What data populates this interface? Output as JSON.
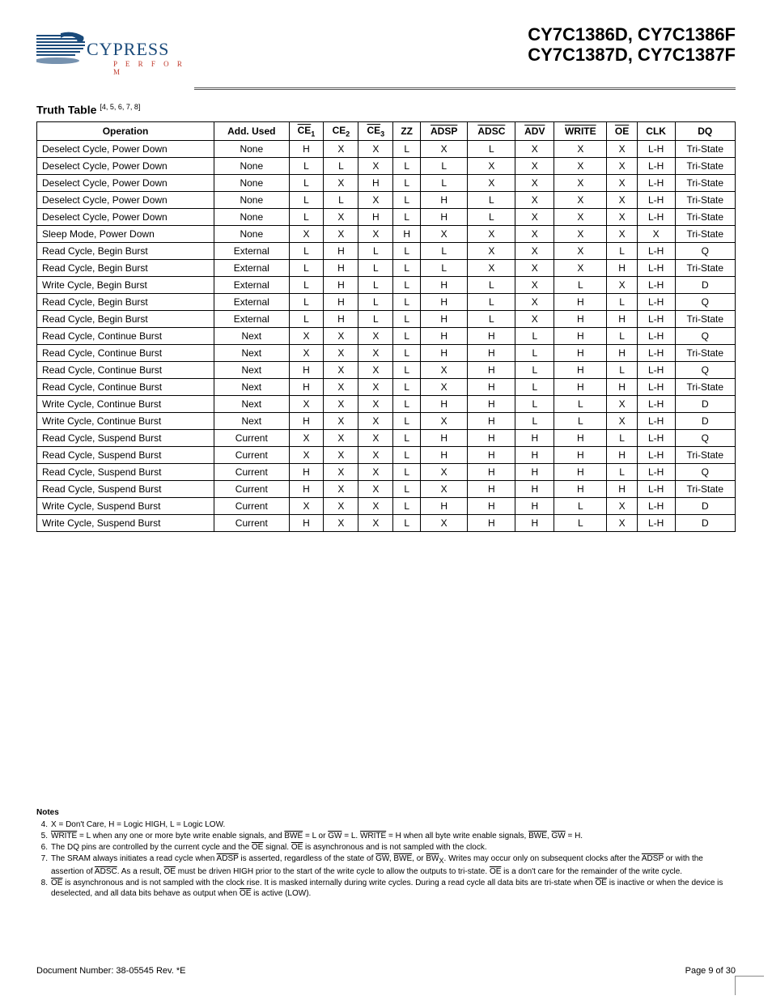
{
  "header": {
    "logo_name": "CYPRESS",
    "logo_tag": "P E R F O R M",
    "parts_line1": "CY7C1386D, CY7C1386F",
    "parts_line2": "CY7C1387D, CY7C1387F"
  },
  "section": {
    "title": "Truth Table",
    "refs": "[4, 5, 6, 7, 8]"
  },
  "table": {
    "columns": [
      {
        "label": "Operation",
        "overline": false
      },
      {
        "label": "Add. Used",
        "overline": false
      },
      {
        "label": "CE",
        "sub": "1",
        "overline": true
      },
      {
        "label": "CE",
        "sub": "2",
        "overline": false
      },
      {
        "label": "CE",
        "sub": "3",
        "overline": true
      },
      {
        "label": "ZZ",
        "overline": false
      },
      {
        "label": "ADSP",
        "overline": true
      },
      {
        "label": "ADSC",
        "overline": true
      },
      {
        "label": "ADV",
        "overline": true
      },
      {
        "label": "WRITE",
        "overline": true
      },
      {
        "label": "OE",
        "overline": true
      },
      {
        "label": "CLK",
        "overline": false
      },
      {
        "label": "DQ",
        "overline": false
      }
    ],
    "rows": [
      [
        "Deselect Cycle, Power Down",
        "None",
        "H",
        "X",
        "X",
        "L",
        "X",
        "L",
        "X",
        "X",
        "X",
        "L-H",
        "Tri-State"
      ],
      [
        "Deselect Cycle, Power Down",
        "None",
        "L",
        "L",
        "X",
        "L",
        "L",
        "X",
        "X",
        "X",
        "X",
        "L-H",
        "Tri-State"
      ],
      [
        "Deselect Cycle, Power Down",
        "None",
        "L",
        "X",
        "H",
        "L",
        "L",
        "X",
        "X",
        "X",
        "X",
        "L-H",
        "Tri-State"
      ],
      [
        "Deselect Cycle, Power Down",
        "None",
        "L",
        "L",
        "X",
        "L",
        "H",
        "L",
        "X",
        "X",
        "X",
        "L-H",
        "Tri-State"
      ],
      [
        "Deselect Cycle, Power Down",
        "None",
        "L",
        "X",
        "H",
        "L",
        "H",
        "L",
        "X",
        "X",
        "X",
        "L-H",
        "Tri-State"
      ],
      [
        "Sleep Mode, Power Down",
        "None",
        "X",
        "X",
        "X",
        "H",
        "X",
        "X",
        "X",
        "X",
        "X",
        "X",
        "Tri-State"
      ],
      [
        "Read Cycle, Begin Burst",
        "External",
        "L",
        "H",
        "L",
        "L",
        "L",
        "X",
        "X",
        "X",
        "L",
        "L-H",
        "Q"
      ],
      [
        "Read Cycle, Begin Burst",
        "External",
        "L",
        "H",
        "L",
        "L",
        "L",
        "X",
        "X",
        "X",
        "H",
        "L-H",
        "Tri-State"
      ],
      [
        "Write Cycle, Begin Burst",
        "External",
        "L",
        "H",
        "L",
        "L",
        "H",
        "L",
        "X",
        "L",
        "X",
        "L-H",
        "D"
      ],
      [
        "Read Cycle, Begin Burst",
        "External",
        "L",
        "H",
        "L",
        "L",
        "H",
        "L",
        "X",
        "H",
        "L",
        "L-H",
        "Q"
      ],
      [
        "Read Cycle, Begin Burst",
        "External",
        "L",
        "H",
        "L",
        "L",
        "H",
        "L",
        "X",
        "H",
        "H",
        "L-H",
        "Tri-State"
      ],
      [
        "Read Cycle, Continue Burst",
        "Next",
        "X",
        "X",
        "X",
        "L",
        "H",
        "H",
        "L",
        "H",
        "L",
        "L-H",
        "Q"
      ],
      [
        "Read Cycle, Continue Burst",
        "Next",
        "X",
        "X",
        "X",
        "L",
        "H",
        "H",
        "L",
        "H",
        "H",
        "L-H",
        "Tri-State"
      ],
      [
        "Read Cycle, Continue Burst",
        "Next",
        "H",
        "X",
        "X",
        "L",
        "X",
        "H",
        "L",
        "H",
        "L",
        "L-H",
        "Q"
      ],
      [
        "Read Cycle, Continue Burst",
        "Next",
        "H",
        "X",
        "X",
        "L",
        "X",
        "H",
        "L",
        "H",
        "H",
        "L-H",
        "Tri-State"
      ],
      [
        "Write Cycle, Continue Burst",
        "Next",
        "X",
        "X",
        "X",
        "L",
        "H",
        "H",
        "L",
        "L",
        "X",
        "L-H",
        "D"
      ],
      [
        "Write Cycle, Continue Burst",
        "Next",
        "H",
        "X",
        "X",
        "L",
        "X",
        "H",
        "L",
        "L",
        "X",
        "L-H",
        "D"
      ],
      [
        "Read Cycle, Suspend Burst",
        "Current",
        "X",
        "X",
        "X",
        "L",
        "H",
        "H",
        "H",
        "H",
        "L",
        "L-H",
        "Q"
      ],
      [
        "Read Cycle, Suspend Burst",
        "Current",
        "X",
        "X",
        "X",
        "L",
        "H",
        "H",
        "H",
        "H",
        "H",
        "L-H",
        "Tri-State"
      ],
      [
        "Read Cycle, Suspend Burst",
        "Current",
        "H",
        "X",
        "X",
        "L",
        "X",
        "H",
        "H",
        "H",
        "L",
        "L-H",
        "Q"
      ],
      [
        "Read Cycle, Suspend Burst",
        "Current",
        "H",
        "X",
        "X",
        "L",
        "X",
        "H",
        "H",
        "H",
        "H",
        "L-H",
        "Tri-State"
      ],
      [
        "Write Cycle, Suspend Burst",
        "Current",
        "X",
        "X",
        "X",
        "L",
        "H",
        "H",
        "H",
        "L",
        "X",
        "L-H",
        "D"
      ],
      [
        "Write Cycle, Suspend Burst",
        "Current",
        "H",
        "X",
        "X",
        "L",
        "X",
        "H",
        "H",
        "L",
        "X",
        "L-H",
        "D"
      ]
    ]
  },
  "notes": {
    "heading": "Notes",
    "items": [
      {
        "num": "4.",
        "text": "X = Don't Care, H = Logic HIGH, L = Logic LOW."
      },
      {
        "num": "5.",
        "html": "<span class='ol'>WRITE</span> = L when any one or more byte write enable signals, and <span class='ol'>BWE</span> = L or <span class='ol'>GW</span> = L. <span class='ol'>WRITE</span> = H when all byte write enable signals, <span class='ol'>BWE</span>, <span class='ol'>GW</span> = H."
      },
      {
        "num": "6.",
        "html": "The DQ pins are controlled by the current cycle and the <span class='ol'>OE</span> signal. <span class='ol'>OE</span> is asynchronous and is not sampled with the clock."
      },
      {
        "num": "7.",
        "html": "The SRAM always initiates a read cycle when <span class='ol'>ADSP</span> is asserted, regardless of the state of <span class='ol'>GW</span>, <span class='ol'>BWE</span>, or <span class='ol'>BW</span><span class='sub'>X</span>. Writes may occur only on subsequent clocks after the <span class='ol'>ADSP</span> or with the assertion of <span class='ol'>ADSC</span>. As a result, <span class='ol'>OE</span> must be driven HIGH prior to the start of the write cycle to allow the outputs to tri-state. <span class='ol'>OE</span> is a don't care for the remainder of the write cycle."
      },
      {
        "num": "8.",
        "html": "<span class='ol'>OE</span> is asynchronous and is not sampled with the clock rise. It is masked internally during write cycles. During a read cycle all data bits are tri-state when <span class='ol'>OE</span> is inactive or when the device is deselected, and all data bits behave as output when <span class='ol'>OE</span> is active (LOW)."
      }
    ]
  },
  "footer": {
    "doc": "Document Number: 38-05545 Rev. *E",
    "page": "Page 9 of 30"
  },
  "colors": {
    "text": "#000000",
    "logo_blue": "#1a4a7a",
    "logo_red": "#c0392b",
    "border": "#000000"
  }
}
